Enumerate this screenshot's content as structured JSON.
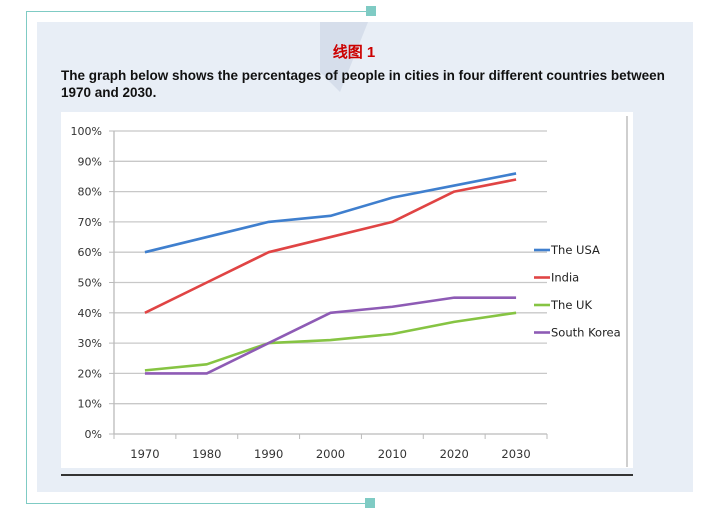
{
  "header": {
    "label_cn": "线图 1",
    "description": "The graph below shows the percentages of people in cities in four different countries between 1970 and 2030."
  },
  "chart_data": {
    "type": "line",
    "title": "",
    "xlabel": "",
    "ylabel": "",
    "x": [
      "1970",
      "1980",
      "1990",
      "2000",
      "2010",
      "2020",
      "2030"
    ],
    "ylim": [
      0,
      100
    ],
    "yticks": [
      "0%",
      "10%",
      "20%",
      "30%",
      "40%",
      "50%",
      "60%",
      "70%",
      "80%",
      "90%",
      "100%"
    ],
    "grid": true,
    "legend_position": "right",
    "series": [
      {
        "name": "The USA",
        "color": "#3f7fce",
        "values": [
          60,
          65,
          70,
          72,
          78,
          82,
          86
        ]
      },
      {
        "name": "India",
        "color": "#e04444",
        "values": [
          40,
          50,
          60,
          65,
          70,
          80,
          84
        ]
      },
      {
        "name": "The UK",
        "color": "#86c443",
        "values": [
          21,
          23,
          30,
          31,
          33,
          37,
          40
        ]
      },
      {
        "name": "South Korea",
        "color": "#8e5bb5",
        "values": [
          20,
          20,
          30,
          40,
          42,
          45,
          45
        ]
      }
    ]
  }
}
